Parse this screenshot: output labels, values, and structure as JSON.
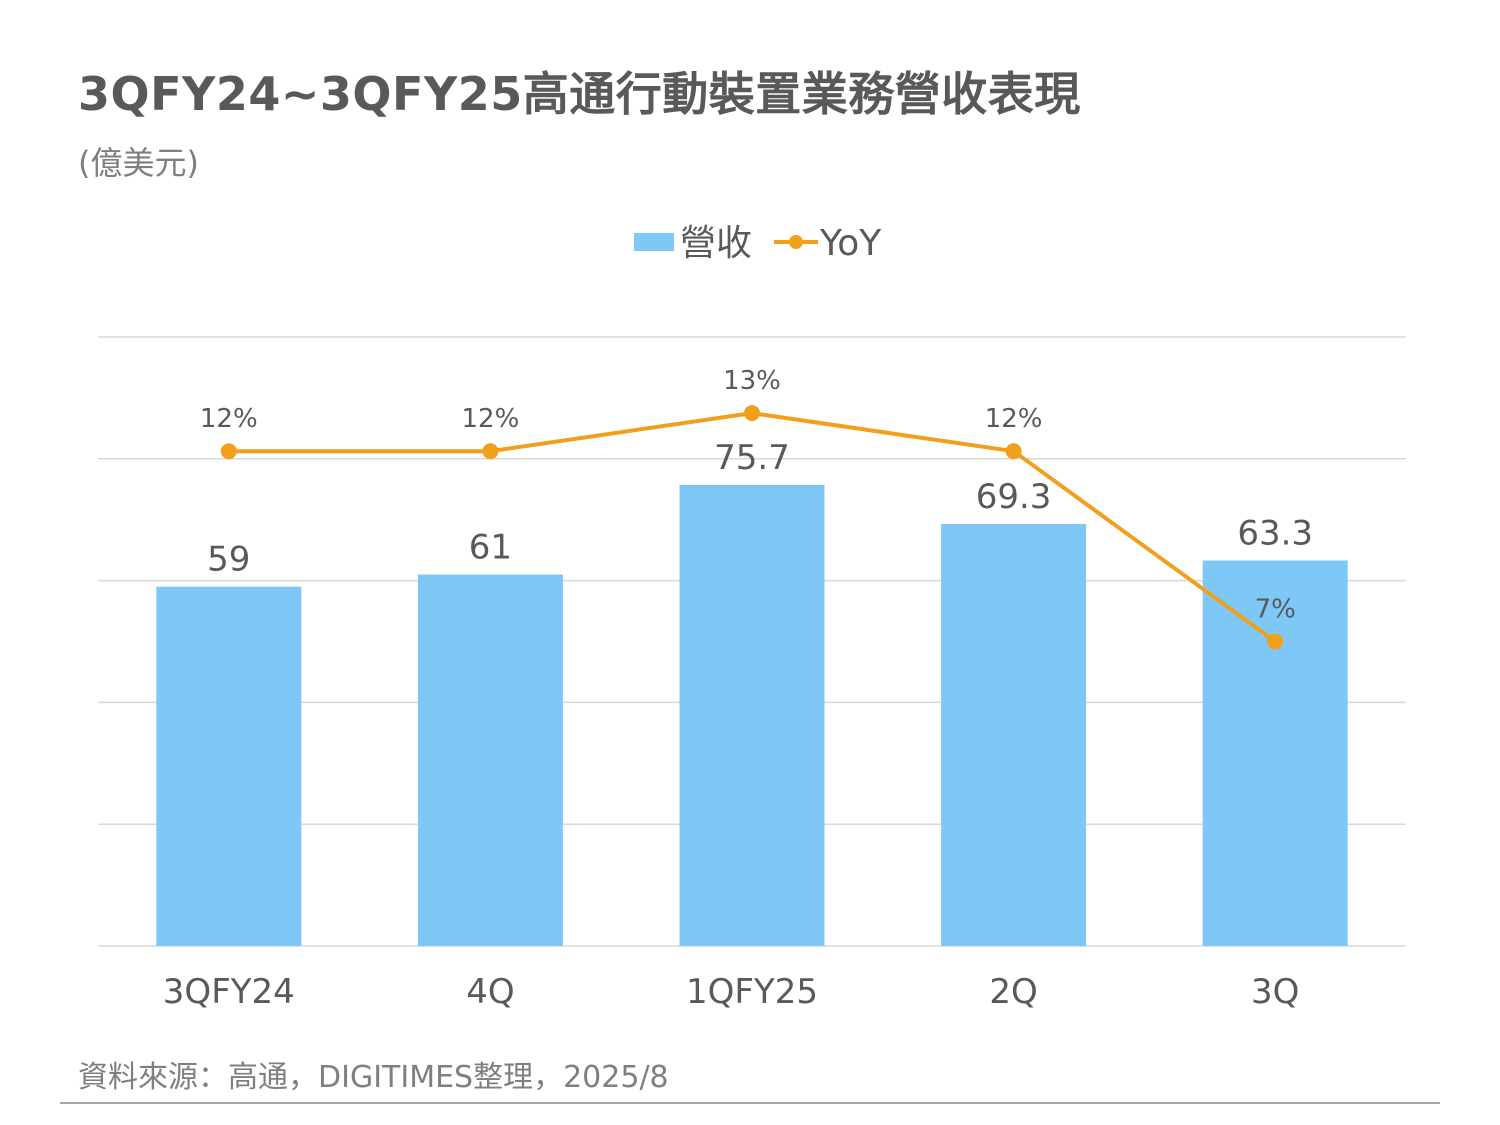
{
  "header": {
    "title": "3QFY24~3QFY25高通行動裝置業務營收表現",
    "subtitle": "(億美元)"
  },
  "footer": {
    "source": "資料來源：高通，DIGITIMES整理，2025/8"
  },
  "colors": {
    "bar": "#7ec8f8",
    "line": "#f0a01c",
    "grid": "#d9d9d9",
    "text": "#595959"
  },
  "chart_data": {
    "type": "bar",
    "categories": [
      "3QFY24",
      "4Q",
      "1QFY25",
      "2Q",
      "3Q"
    ],
    "series": [
      {
        "name": "營收",
        "type": "bar",
        "axis": "left",
        "values": [
          59,
          61,
          75.7,
          69.3,
          63.3
        ],
        "labels": [
          "59",
          "61",
          "75.7",
          "69.3",
          "63.3"
        ]
      },
      {
        "name": "YoY",
        "type": "line",
        "axis": "right",
        "values": [
          12,
          12,
          13,
          12,
          7
        ],
        "labels": [
          "12%",
          "12%",
          "13%",
          "12%",
          "7%"
        ]
      }
    ],
    "ylim": [
      0,
      100
    ],
    "y2lim": [
      -1,
      15
    ],
    "grid": true,
    "legend": "top-center"
  }
}
